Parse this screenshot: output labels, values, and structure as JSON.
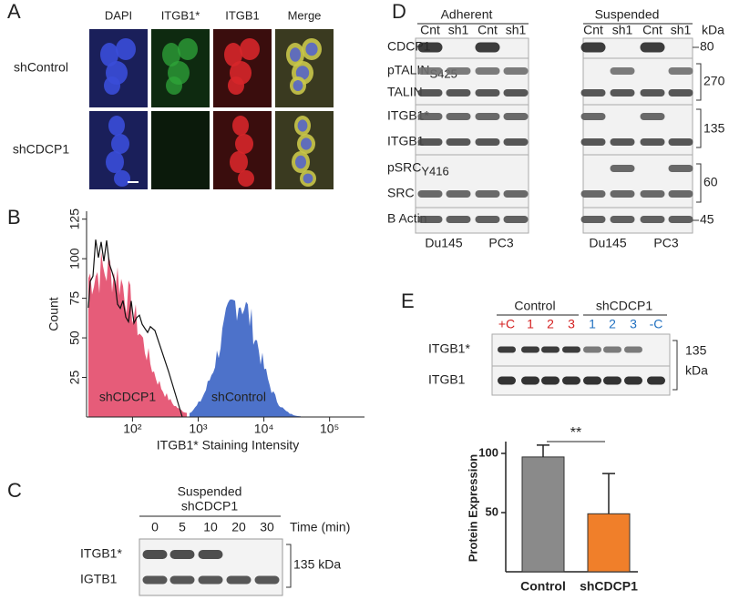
{
  "panels": {
    "A": {
      "label": "A",
      "columns": [
        "DAPI",
        "ITGB1*",
        "ITGB1",
        "Merge"
      ],
      "rows": [
        "shControl",
        "shCDCP1"
      ]
    },
    "B": {
      "label": "B",
      "y_label": "Count",
      "x_label": "ITGB1* Staining Intensity",
      "series_labels": [
        "shCDCP1",
        "shControl"
      ],
      "xscale": "log",
      "xlim": [
        20,
        340000
      ],
      "xticks": [
        {
          "value": 100,
          "label": "10²"
        },
        {
          "value": 1000,
          "label": "10³"
        },
        {
          "value": 10000,
          "label": "10⁴"
        },
        {
          "value": 100000,
          "label": "10⁵"
        }
      ],
      "ylim": [
        0,
        130
      ],
      "yticks": [
        25,
        50,
        75,
        100,
        125
      ]
    },
    "C": {
      "label": "C",
      "header": [
        "Suspended",
        "shCDCP1"
      ],
      "lanes": [
        "0",
        "5",
        "10",
        "20",
        "30"
      ],
      "lane_unit": "Time (min)",
      "rows": [
        "ITGB1*",
        "IGTB1"
      ],
      "marker": "135 kDa"
    },
    "D": {
      "label": "D",
      "groups": [
        "Adherent",
        "Suspended"
      ],
      "lanes": [
        "Cnt",
        "sh1",
        "Cnt",
        "sh1",
        "Cnt",
        "sh1",
        "Cnt",
        "sh1"
      ],
      "unit": "kDa",
      "rows": [
        {
          "name": "CDCP1"
        },
        {
          "name": "pTALIN",
          "sub": "S425"
        },
        {
          "name": "TALIN"
        },
        {
          "name": "ITGB1*"
        },
        {
          "name": "ITGB1"
        },
        {
          "name": "pSRC",
          "sub": "Y416"
        },
        {
          "name": "SRC"
        },
        {
          "name": "B Actin"
        }
      ],
      "markers": [
        "80",
        "270",
        "135",
        "60",
        "45"
      ],
      "cells": [
        "Du145",
        "PC3",
        "Du145",
        "PC3"
      ]
    },
    "E": {
      "label": "E",
      "groups": [
        "Control",
        "shCDCP1"
      ],
      "lanes": [
        "+C",
        "1",
        "2",
        "3",
        "1",
        "2",
        "3",
        "-C"
      ],
      "rows": [
        "ITGB1*",
        "ITGB1"
      ],
      "marker": [
        "135",
        "kDa"
      ],
      "chart": {
        "type": "bar",
        "y_label": "Protein Expression",
        "categories": [
          "Control",
          "shCDCP1"
        ],
        "values": [
          97,
          49
        ],
        "errors": [
          10,
          34
        ],
        "colors": [
          "#8a8a8a",
          "#f07f2a"
        ],
        "ylim": [
          0,
          110
        ],
        "yticks": [
          50,
          100
        ],
        "significance": "**"
      }
    }
  }
}
